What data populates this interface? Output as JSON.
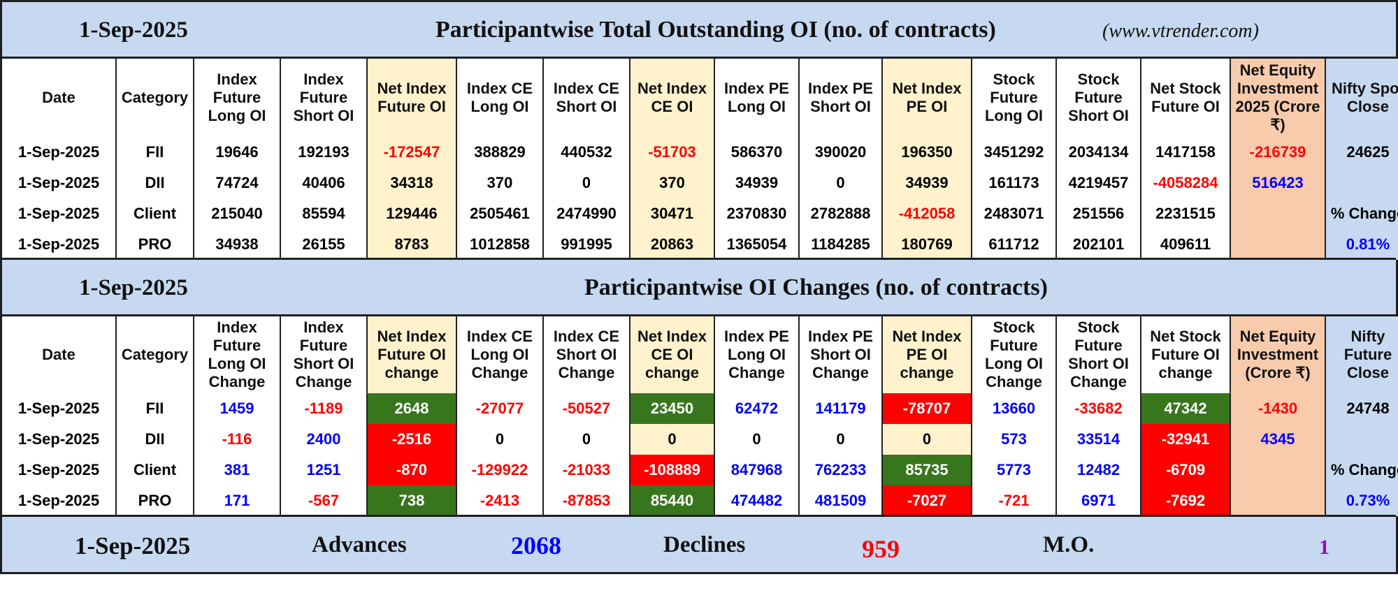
{
  "colors": {
    "bg_blue": "#c6d9f1",
    "cream": "#fff2cc",
    "orange": "#f8cbad",
    "positive_fill": "#38761d",
    "negative_fill": "#ff0000",
    "negative_text": "#ff0000",
    "positive_text": "#0000ff",
    "purple": "#9900cc"
  },
  "section1": {
    "date": "1-Sep-2025",
    "title": "Participantwise Total Outstanding OI (no. of contracts)",
    "site": "(www.vtrender.com)",
    "headers": [
      "Date",
      "Category",
      "Index Future Long OI",
      "Index Future Short OI",
      "Net Index Future OI",
      "Index CE Long OI",
      "Index CE Short OI",
      "Net Index CE OI",
      "Index PE Long OI",
      "Index PE Short OI",
      "Net Index PE OI",
      "Stock Future Long OI",
      "Stock Future Short OI",
      "Net Stock Future OI",
      "Net Equity Investment 2025 (Crore ₹)",
      "Nifty Spot Close"
    ],
    "rows": [
      {
        "date": "1-Sep-2025",
        "category": "FII",
        "v": [
          "19646",
          "192193",
          "-172547",
          "388829",
          "440532",
          "-51703",
          "586370",
          "390020",
          "196350",
          "3451292",
          "2034134",
          "1417158"
        ],
        "equity": "-216739",
        "nifty": "24625"
      },
      {
        "date": "1-Sep-2025",
        "category": "DII",
        "v": [
          "74724",
          "40406",
          "34318",
          "370",
          "0",
          "370",
          "34939",
          "0",
          "34939",
          "161173",
          "4219457",
          "-4058284"
        ],
        "equity": "516423",
        "nifty": ""
      },
      {
        "date": "1-Sep-2025",
        "category": "Client",
        "v": [
          "215040",
          "85594",
          "129446",
          "2505461",
          "2474990",
          "30471",
          "2370830",
          "2782888",
          "-412058",
          "2483071",
          "251556",
          "2231515"
        ],
        "equity": "",
        "nifty": "% Change"
      },
      {
        "date": "1-Sep-2025",
        "category": "PRO",
        "v": [
          "34938",
          "26155",
          "8783",
          "1012858",
          "991995",
          "20863",
          "1365054",
          "1184285",
          "180769",
          "611712",
          "202101",
          "409611"
        ],
        "equity": "",
        "nifty": "0.81%"
      }
    ]
  },
  "section2": {
    "date": "1-Sep-2025",
    "title": "Participantwise OI Changes (no. of contracts)",
    "headers": [
      "Date",
      "Category",
      "Index Future Long OI Change",
      "Index Future Short OI Change",
      "Net Index Future OI change",
      "Index CE Long OI Change",
      "Index CE Short OI Change",
      "Net Index CE OI change",
      "Index PE Long OI Change",
      "Index PE Short OI Change",
      "Net Index PE OI change",
      "Stock Future Long OI Change",
      "Stock Future Short OI Change",
      "Net Stock Future OI change",
      "Net Equity Investment (Crore ₹)",
      "Nifty Future Close"
    ],
    "rows": [
      {
        "date": "1-Sep-2025",
        "category": "FII",
        "v": [
          "1459",
          "-1189",
          "2648",
          "-27077",
          "-50527",
          "23450",
          "62472",
          "141179",
          "-78707",
          "13660",
          "-33682",
          "47342"
        ],
        "equity": "-1430",
        "nifty": "24748"
      },
      {
        "date": "1-Sep-2025",
        "category": "DII",
        "v": [
          "-116",
          "2400",
          "-2516",
          "0",
          "0",
          "0",
          "0",
          "0",
          "0",
          "573",
          "33514",
          "-32941"
        ],
        "equity": "4345",
        "nifty": ""
      },
      {
        "date": "1-Sep-2025",
        "category": "Client",
        "v": [
          "381",
          "1251",
          "-870",
          "-129922",
          "-21033",
          "-108889",
          "847968",
          "762233",
          "85735",
          "5773",
          "12482",
          "-6709"
        ],
        "equity": "",
        "nifty": "% Change"
      },
      {
        "date": "1-Sep-2025",
        "category": "PRO",
        "v": [
          "171",
          "-567",
          "738",
          "-2413",
          "-87853",
          "85440",
          "474482",
          "481509",
          "-7027",
          "-721",
          "6971",
          "-7692"
        ],
        "equity": "",
        "nifty": "0.73%"
      }
    ]
  },
  "footer": {
    "date": "1-Sep-2025",
    "advances_label": "Advances",
    "advances_value": "2068",
    "declines_label": "Declines",
    "declines_value": "959",
    "mo_label": "M.O.",
    "mo_value": "1"
  }
}
